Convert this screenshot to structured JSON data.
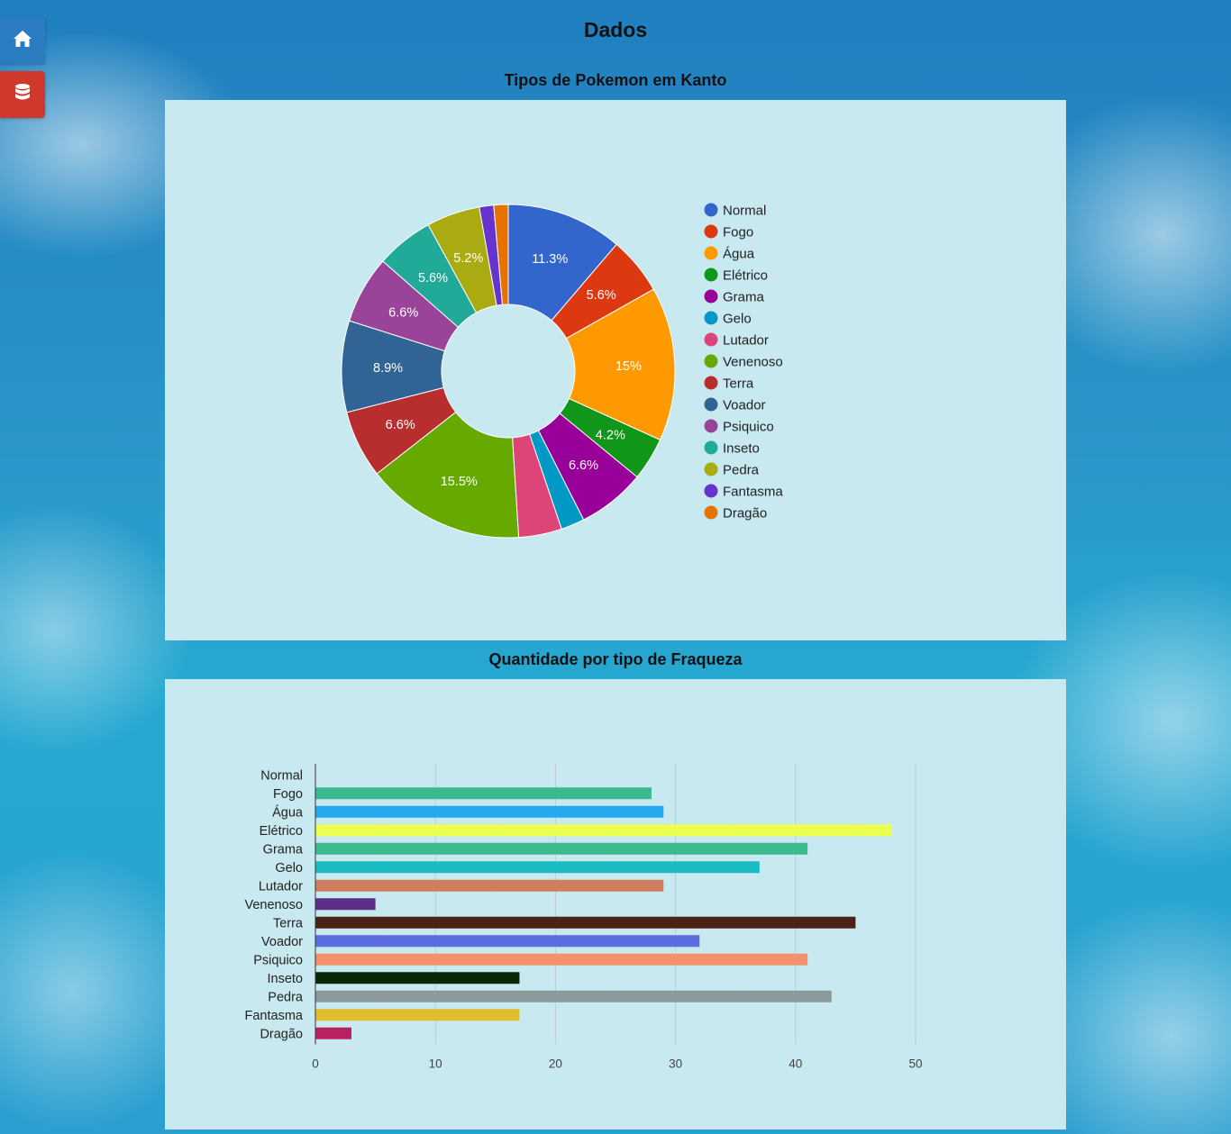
{
  "page": {
    "title": "Dados"
  },
  "sidebar": {
    "home_icon": "home-icon",
    "database_icon": "database-icon"
  },
  "chart_data": [
    {
      "type": "pie",
      "title": "Tipos de Pokemon em Kanto",
      "donut": true,
      "legend_position": "right",
      "categories": [
        "Normal",
        "Fogo",
        "Água",
        "Elétrico",
        "Grama",
        "Gelo",
        "Lutador",
        "Venenoso",
        "Terra",
        "Voador",
        "Psiquico",
        "Inseto",
        "Pedra",
        "Fantasma",
        "Dragão"
      ],
      "values": [
        11.3,
        5.6,
        15.0,
        4.2,
        6.6,
        2.3,
        4.2,
        15.5,
        6.6,
        8.9,
        6.6,
        5.6,
        5.2,
        1.4,
        1.4
      ],
      "labels": [
        "11.3%",
        "5.6%",
        "15%",
        "4.2%",
        "6.6%",
        "",
        "",
        "15.5%",
        "6.6%",
        "8.9%",
        "6.6%",
        "5.6%",
        "5.2%",
        "",
        ""
      ],
      "colors": [
        "#3366cc",
        "#dc3912",
        "#ff9900",
        "#109618",
        "#990099",
        "#0099c6",
        "#dd4477",
        "#66aa00",
        "#b82e2e",
        "#316395",
        "#994499",
        "#22aa99",
        "#aaaa11",
        "#6633cc",
        "#e67300"
      ]
    },
    {
      "type": "bar",
      "orientation": "horizontal",
      "title": "Quantidade por tipo de Fraqueza",
      "categories": [
        "Normal",
        "Fogo",
        "Água",
        "Elétrico",
        "Grama",
        "Gelo",
        "Lutador",
        "Venenoso",
        "Terra",
        "Voador",
        "Psiquico",
        "Inseto",
        "Pedra",
        "Fantasma",
        "Dragão"
      ],
      "values": [
        0,
        28,
        29,
        48,
        41,
        37,
        29,
        5,
        45,
        32,
        41,
        17,
        43,
        17,
        3
      ],
      "colors": [
        "#c0c0c0",
        "#3cba8f",
        "#24a8ee",
        "#eaff4f",
        "#3cba8f",
        "#1bbbc3",
        "#d07d5e",
        "#5c2e8a",
        "#4b2216",
        "#5a6ee0",
        "#f5906c",
        "#082808",
        "#8b9a9b",
        "#e0bd2b",
        "#bb2161"
      ],
      "xlim": [
        0,
        50
      ],
      "xticks": [
        0,
        10,
        20,
        30,
        40,
        50
      ],
      "grid": true
    }
  ]
}
